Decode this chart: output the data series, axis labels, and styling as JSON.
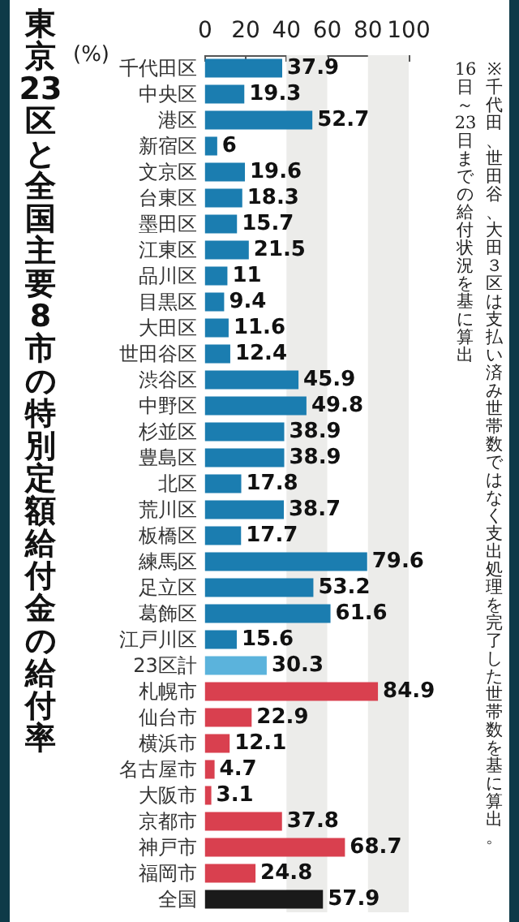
{
  "chart_data": {
    "type": "bar",
    "orientation": "horizontal",
    "title": "東京23区と全国主要8市の特別定額給付金の給付率",
    "xlabel": "(%)",
    "categories": [
      "千代田区",
      "中央区",
      "港区",
      "新宿区",
      "文京区",
      "台東区",
      "墨田区",
      "江東区",
      "品川区",
      "目黒区",
      "大田区",
      "世田谷区",
      "渋谷区",
      "中野区",
      "杉並区",
      "豊島区",
      "北区",
      "荒川区",
      "板橋区",
      "練馬区",
      "足立区",
      "葛飾区",
      "江戸川区",
      "23区計",
      "札幌市",
      "仙台市",
      "横浜市",
      "名古屋市",
      "大阪市",
      "京都市",
      "神戸市",
      "福岡市",
      "全国"
    ],
    "values": [
      37.9,
      19.3,
      52.7,
      6,
      19.6,
      18.3,
      15.7,
      21.5,
      11,
      9.4,
      11.6,
      12.4,
      45.9,
      49.8,
      38.9,
      38.9,
      17.8,
      38.7,
      17.7,
      79.6,
      53.2,
      61.6,
      15.6,
      30.3,
      84.9,
      22.9,
      12.1,
      4.7,
      3.1,
      37.8,
      68.7,
      24.8,
      57.9
    ],
    "colors": [
      "#1b7db0",
      "#1b7db0",
      "#1b7db0",
      "#1b7db0",
      "#1b7db0",
      "#1b7db0",
      "#1b7db0",
      "#1b7db0",
      "#1b7db0",
      "#1b7db0",
      "#1b7db0",
      "#1b7db0",
      "#1b7db0",
      "#1b7db0",
      "#1b7db0",
      "#1b7db0",
      "#1b7db0",
      "#1b7db0",
      "#1b7db0",
      "#1b7db0",
      "#1b7db0",
      "#1b7db0",
      "#1b7db0",
      "#5bb3dc",
      "#d9404f",
      "#d9404f",
      "#d9404f",
      "#d9404f",
      "#d9404f",
      "#d9404f",
      "#d9404f",
      "#d9404f",
      "#1a1a1a"
    ],
    "xlim": [
      0,
      100
    ],
    "xticks": [
      0,
      20,
      40,
      60,
      80,
      100
    ],
    "bands": [
      {
        "axis": "x",
        "from": 40,
        "to": 60,
        "color": "#ececea"
      },
      {
        "axis": "x",
        "from": 80,
        "to": 100,
        "color": "#ececea"
      }
    ],
    "data_labels": true,
    "annotations": [
      "※千代田、世田谷、大田３区は支払い済み世帯数ではなく支出処理を完了した世帯数を基に算出。",
      "16日～23日までの給付状況を基に算出"
    ]
  }
}
